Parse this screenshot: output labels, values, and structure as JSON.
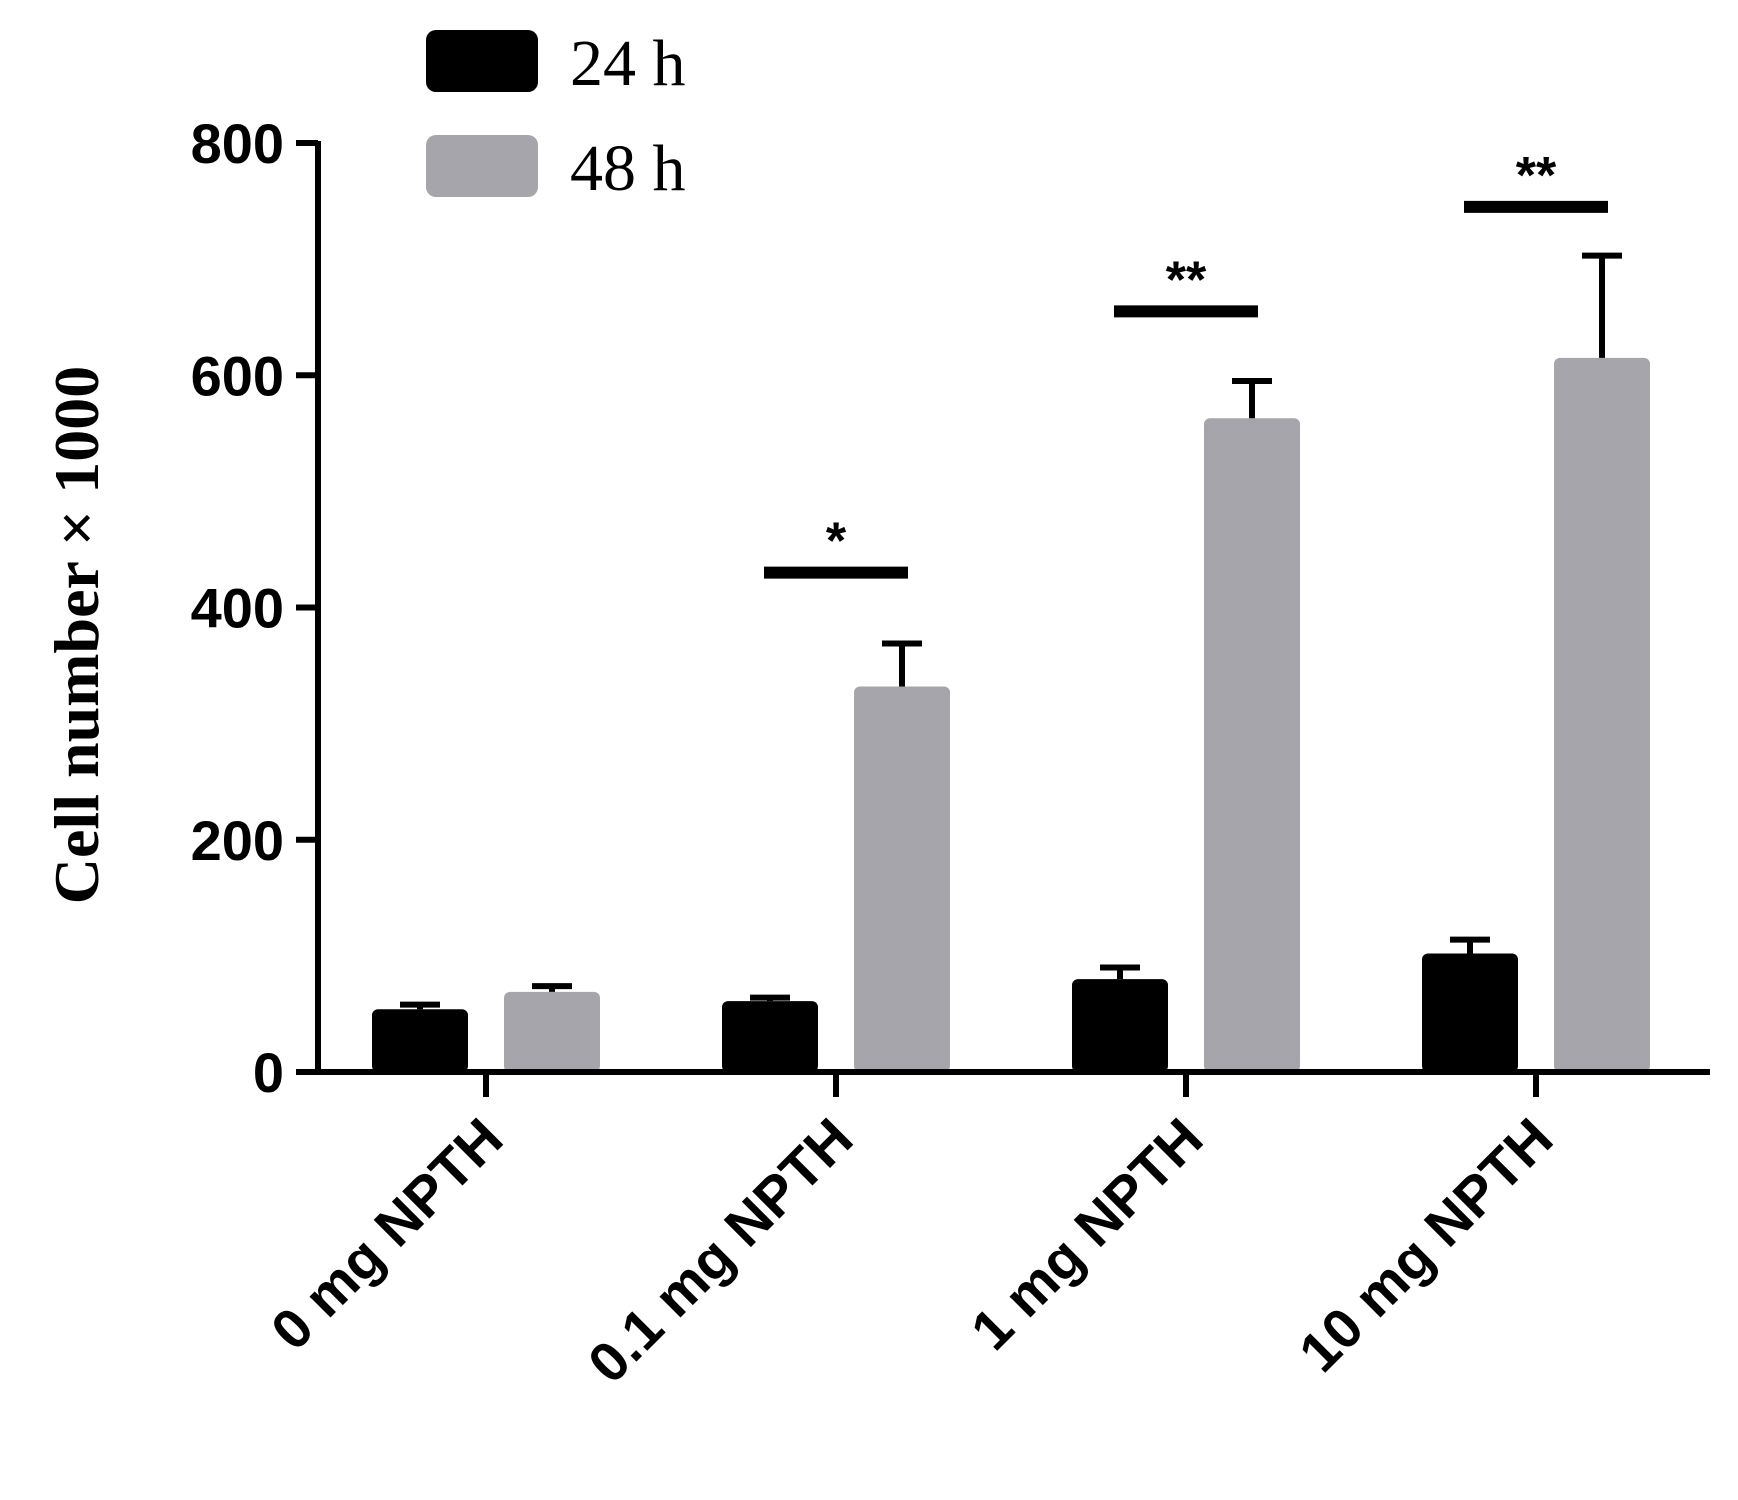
{
  "chart_data": {
    "type": "bar",
    "categories": [
      "0 mg NPTH",
      "0.1 mg NPTH",
      "1 mg NPTH",
      "10 mg NPTH"
    ],
    "series": [
      {
        "name": "24 h",
        "values": [
          54,
          61,
          80,
          102
        ],
        "errors": [
          4,
          3,
          10,
          12
        ],
        "color": "#000000"
      },
      {
        "name": "48 h",
        "values": [
          69,
          332,
          563,
          615
        ],
        "errors": [
          5,
          37,
          32,
          88
        ],
        "color": "#a6a5ab"
      }
    ],
    "title": "",
    "xlabel": "",
    "ylabel": "Cell number × 1000",
    "ylim": [
      0,
      800
    ],
    "yticks": [
      0,
      200,
      400,
      600,
      800
    ],
    "significance": [
      {
        "category": "0.1 mg NPTH",
        "label": "*",
        "y": 430
      },
      {
        "category": "1 mg NPTH",
        "label": "**",
        "y": 655
      },
      {
        "category": "10 mg NPTH",
        "label": "**",
        "y": 745
      }
    ],
    "legend_position": "top-left",
    "grid": false
  }
}
